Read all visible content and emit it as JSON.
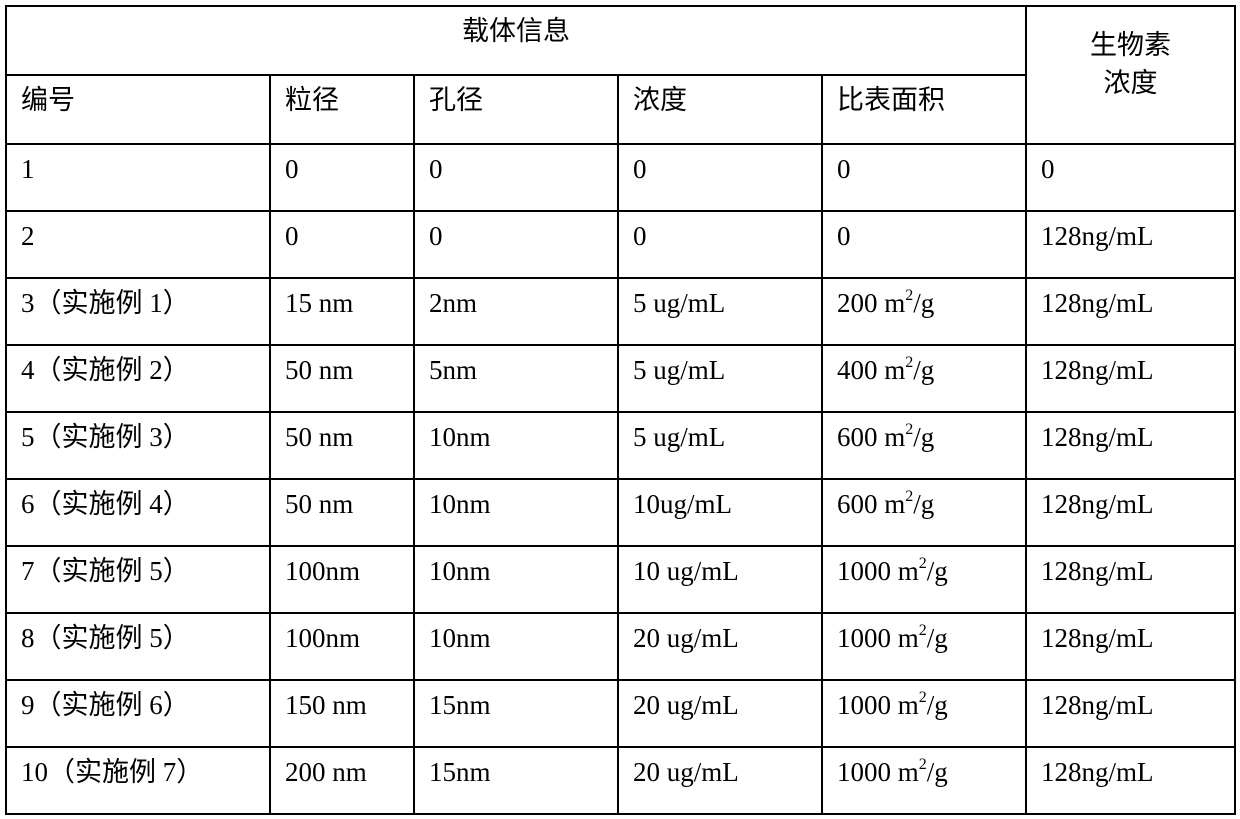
{
  "table": {
    "group_header": "载体信息",
    "bio_header_line1": "生物素",
    "bio_header_line2": "浓度",
    "columns": [
      "编号",
      "粒径",
      "孔径",
      "浓度",
      "比表面积"
    ],
    "rows": [
      {
        "id": "1",
        "particle": "0",
        "pore": "0",
        "conc": "0",
        "area_num": "0",
        "area_unit": "",
        "bio": "0"
      },
      {
        "id": "2",
        "particle": "0",
        "pore": "0",
        "conc": "0",
        "area_num": "0",
        "area_unit": "",
        "bio": "128ng/mL"
      },
      {
        "id": "3（实施例 1）",
        "particle": "15 nm",
        "pore": "2nm",
        "conc": "5 ug/mL",
        "area_num": "200 m",
        "area_unit": "/g",
        "bio": "128ng/mL"
      },
      {
        "id": "4（实施例 2）",
        "particle": "50 nm",
        "pore": "5nm",
        "conc": "5 ug/mL",
        "area_num": "400 m",
        "area_unit": "/g",
        "bio": "128ng/mL"
      },
      {
        "id": "5（实施例 3）",
        "particle": "50 nm",
        "pore": "10nm",
        "conc": "5 ug/mL",
        "area_num": "600 m",
        "area_unit": "/g",
        "bio": "128ng/mL"
      },
      {
        "id": "6（实施例 4）",
        "particle": "50 nm",
        "pore": "10nm",
        "conc": "10ug/mL",
        "area_num": "600 m",
        "area_unit": "/g",
        "bio": "128ng/mL"
      },
      {
        "id": "7（实施例 5）",
        "particle": "100nm",
        "pore": "10nm",
        "conc": "10 ug/mL",
        "area_num": "1000 m",
        "area_unit": "/g",
        "bio": "128ng/mL"
      },
      {
        "id": "8（实施例 5）",
        "particle": "100nm",
        "pore": "10nm",
        "conc": "20 ug/mL",
        "area_num": "1000 m",
        "area_unit": "/g",
        "bio": "128ng/mL"
      },
      {
        "id": "9（实施例 6）",
        "particle": "150 nm",
        "pore": "15nm",
        "conc": "20 ug/mL",
        "area_num": "1000 m",
        "area_unit": "/g",
        "bio": "128ng/mL"
      },
      {
        "id": "10（实施例 7）",
        "particle": "200 nm",
        "pore": "15nm",
        "conc": "20 ug/mL",
        "area_num": "1000 m",
        "area_unit": "/g",
        "bio": "128ng/mL"
      }
    ],
    "superscript": "2"
  }
}
